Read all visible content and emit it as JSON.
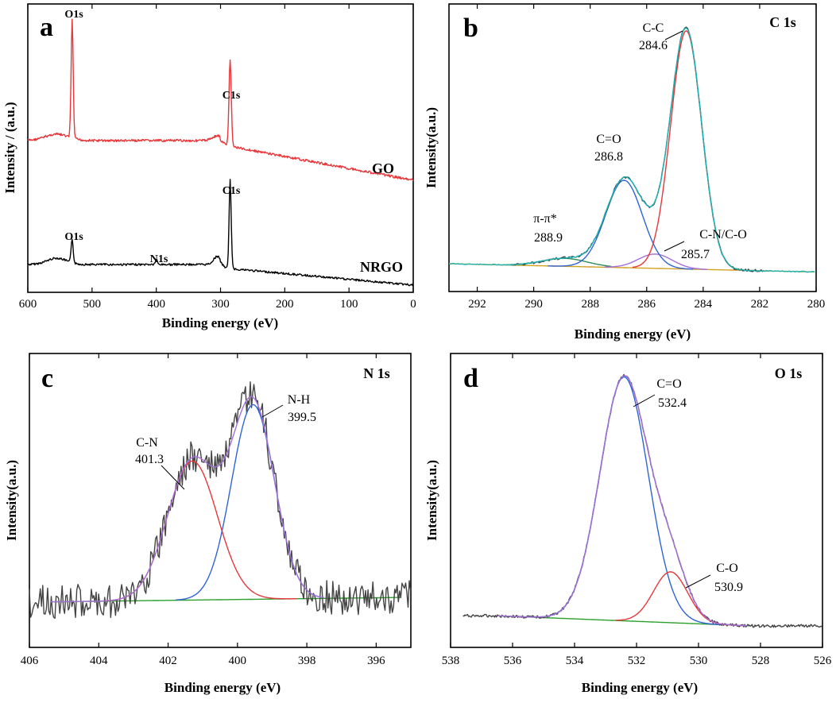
{
  "chart_data": [
    {
      "panel": "a",
      "type": "line",
      "title": "",
      "xlabel": "Binding energy (eV)",
      "ylabel": "Intensity / (a.u.)",
      "xlim": [
        600,
        0
      ],
      "xticks": [
        "600",
        "500",
        "400",
        "300",
        "200",
        "100",
        "0"
      ],
      "series": [
        {
          "name": "GO",
          "color": "#e8373a",
          "peaks": [
            {
              "label": "O1s",
              "x": 531
            },
            {
              "label": "C1s",
              "x": 285
            }
          ]
        },
        {
          "name": "NRGO",
          "color": "#000000",
          "peaks": [
            {
              "label": "O1s",
              "x": 531
            },
            {
              "label": "N1s",
              "x": 400
            },
            {
              "label": "C1s",
              "x": 285
            }
          ]
        }
      ]
    },
    {
      "panel": "b",
      "type": "line",
      "title": "C 1s",
      "xlabel": "Binding energy (eV)",
      "ylabel": "Intensity(a.u.)",
      "xlim": [
        293,
        280
      ],
      "xticks": [
        "292",
        "290",
        "288",
        "286",
        "284",
        "282",
        "280"
      ],
      "components": [
        {
          "name": "C-C",
          "value": "284.6",
          "color": "#e8373a"
        },
        {
          "name": "C=O",
          "value": "286.8",
          "color": "#2f64d6"
        },
        {
          "name": "C-N/C-O",
          "value": "285.7",
          "color": "#a56fd8"
        },
        {
          "name": "π-π*",
          "value": "288.9",
          "color": "#2e8b57"
        }
      ],
      "curves": {
        "raw": "#444444",
        "fit": "#1bb3b3",
        "baseline": "#d4a020"
      }
    },
    {
      "panel": "c",
      "type": "line",
      "title": "N 1s",
      "xlabel": "Binding energy (eV)",
      "ylabel": "Intensity(a.u.)",
      "xlim": [
        406,
        395
      ],
      "xticks": [
        "406",
        "404",
        "402",
        "400",
        "398",
        "396"
      ],
      "components": [
        {
          "name": "C-N",
          "value": "401.3",
          "color": "#e8373a"
        },
        {
          "name": "N-H",
          "value": "399.5",
          "color": "#2f64d6"
        }
      ],
      "curves": {
        "raw": "#444444",
        "fit": "#a56fd8",
        "baseline": "#2ca02c"
      }
    },
    {
      "panel": "d",
      "type": "line",
      "title": "O 1s",
      "xlabel": "Binding energy (eV)",
      "ylabel": "Intensity(a.u.)",
      "xlim": [
        538,
        526
      ],
      "xticks": [
        "538",
        "536",
        "534",
        "532",
        "530",
        "528",
        "526"
      ],
      "components": [
        {
          "name": "C=O",
          "value": "532.4",
          "color": "#2f64d6"
        },
        {
          "name": "C-O",
          "value": "530.9",
          "color": "#e8373a"
        }
      ],
      "curves": {
        "raw": "#444444",
        "fit": "#a56fd8",
        "baseline": "#2ca02c"
      }
    }
  ]
}
